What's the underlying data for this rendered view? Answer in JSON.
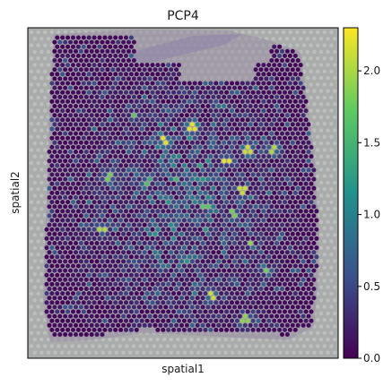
{
  "chart_data": {
    "type": "scatter",
    "subtype": "spatial-spot-map",
    "title": "PCP4",
    "xlabel": "spatial1",
    "ylabel": "spatial2",
    "x_ticks_shown": false,
    "y_ticks_shown": false,
    "grid": false,
    "background": "tissue-image",
    "colormap": "viridis",
    "colormap_stops": [
      "#440154",
      "#3b528b",
      "#21918c",
      "#5ec962",
      "#fde725"
    ],
    "colorbar": {
      "placement": "right",
      "range": [
        0,
        2.3
      ],
      "ticks": [
        0.0,
        0.5,
        1.0,
        1.5,
        2.0
      ],
      "tick_labels": [
        "0.0",
        "0.5",
        "1.0",
        "1.5",
        "2.0"
      ]
    },
    "value_distribution": {
      "min": 0.0,
      "max": 2.3,
      "description_hidden": true
    },
    "hotspots": [
      {
        "x": 0.64,
        "y": 0.4,
        "value": 2.2
      },
      {
        "x": 0.71,
        "y": 0.37,
        "value": 2.1
      },
      {
        "x": 0.44,
        "y": 0.34,
        "value": 2.2
      },
      {
        "x": 0.69,
        "y": 0.49,
        "value": 2.1
      },
      {
        "x": 0.24,
        "y": 0.61,
        "value": 2.0
      },
      {
        "x": 0.79,
        "y": 0.37,
        "value": 2.0
      },
      {
        "x": 0.53,
        "y": 0.3,
        "value": 2.2
      },
      {
        "x": 0.7,
        "y": 0.88,
        "value": 1.9
      },
      {
        "x": 0.59,
        "y": 0.81,
        "value": 2.1
      },
      {
        "x": 0.26,
        "y": 0.45,
        "value": 1.8
      },
      {
        "x": 0.34,
        "y": 0.26,
        "value": 1.7
      },
      {
        "x": 0.66,
        "y": 0.56,
        "value": 1.8
      },
      {
        "x": 0.72,
        "y": 0.65,
        "value": 1.9
      },
      {
        "x": 0.38,
        "y": 0.47,
        "value": 1.6
      },
      {
        "x": 0.77,
        "y": 0.73,
        "value": 1.8
      },
      {
        "x": 0.57,
        "y": 0.54,
        "value": 1.7
      }
    ]
  }
}
